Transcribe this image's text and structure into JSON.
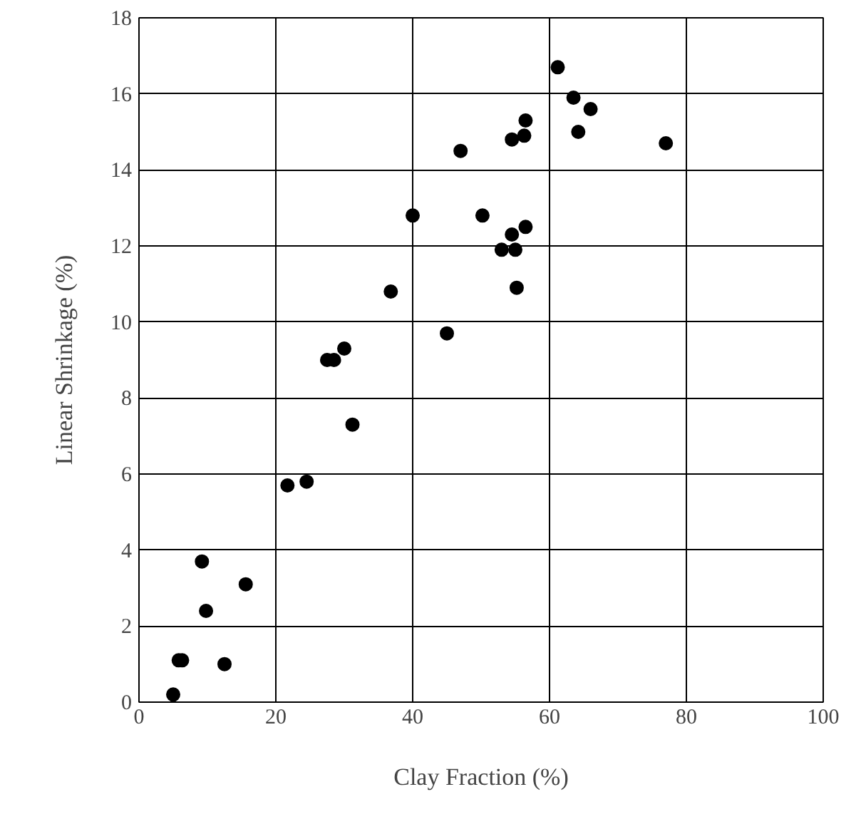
{
  "chart_data": {
    "type": "scatter",
    "xlabel": "Clay Fraction (%)",
    "ylabel": "Linear Shrinkage (%)",
    "x": [
      61.2,
      63.5,
      66,
      56.5,
      64.2,
      54.5,
      56.3,
      77,
      47,
      40,
      50.2,
      56.5,
      54.5,
      53,
      55,
      55.2,
      36.8,
      45,
      30,
      27.5,
      28.5,
      31.2,
      21.7,
      24.5,
      9.2,
      15.6,
      9.8,
      5.8,
      6.3,
      12.5,
      5
    ],
    "values": [
      16.7,
      15.9,
      15.6,
      15.3,
      15.0,
      14.8,
      14.9,
      14.7,
      14.5,
      12.8,
      12.8,
      12.5,
      12.3,
      11.9,
      11.9,
      10.9,
      10.8,
      9.7,
      9.3,
      9.0,
      9.0,
      7.3,
      5.7,
      5.8,
      3.7,
      3.1,
      2.4,
      1.1,
      1.1,
      1.0,
      0.2
    ],
    "color": "#000000",
    "marker": "circle",
    "xlim": [
      0,
      100
    ],
    "xticks": [
      0,
      20,
      40,
      60,
      80,
      100
    ],
    "ylim": [
      0,
      18
    ],
    "yticks": [
      0,
      2,
      4,
      6,
      8,
      10,
      12,
      14,
      16,
      18
    ],
    "grid": true
  }
}
